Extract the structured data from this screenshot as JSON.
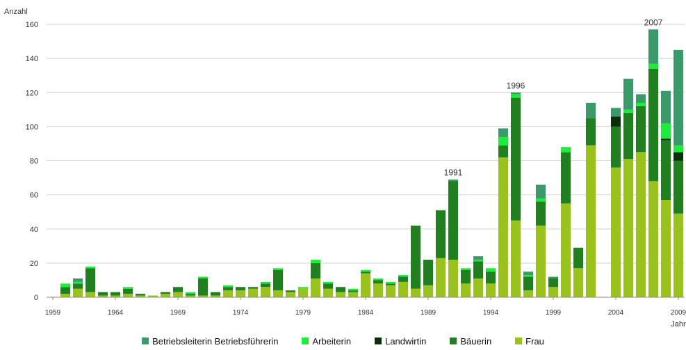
{
  "chart_data": {
    "type": "bar",
    "stacked": true,
    "ylabel": "Anzahl",
    "xlabel": "Jahr",
    "ylim": [
      0,
      160
    ],
    "yticks": [
      "0",
      "20",
      "40",
      "60",
      "80",
      "100",
      "120",
      "140",
      "160"
    ],
    "grid": "horizontal",
    "legend_position": "bottom",
    "x": [
      1959,
      1960,
      1961,
      1962,
      1963,
      1964,
      1965,
      1966,
      1967,
      1968,
      1969,
      1970,
      1971,
      1972,
      1973,
      1974,
      1975,
      1976,
      1977,
      1978,
      1979,
      1980,
      1981,
      1982,
      1983,
      1984,
      1985,
      1986,
      1987,
      1988,
      1989,
      1990,
      1991,
      1992,
      1993,
      1994,
      1995,
      1996,
      1997,
      1998,
      1999,
      2000,
      2001,
      2002,
      2003,
      2004,
      2005,
      2006,
      2007,
      2008,
      2009
    ],
    "xticks": [
      "1959",
      "1964",
      "1969",
      "1974",
      "1979",
      "1984",
      "1989",
      "1994",
      "1999",
      "2004",
      "2009"
    ],
    "annotations": [
      {
        "x": 1991,
        "y": 69,
        "text": "1991"
      },
      {
        "x": 1996,
        "y": 120,
        "text": "1996"
      },
      {
        "x": 2007,
        "y": 157,
        "text": "2007"
      }
    ],
    "series": [
      {
        "name": "Frau",
        "color": "#99c31c",
        "values": [
          0,
          2,
          5,
          3,
          1,
          1,
          2,
          1,
          1,
          2,
          3,
          1,
          1,
          1,
          4,
          4,
          5,
          6,
          4,
          3,
          5,
          11,
          5,
          3,
          3,
          14,
          8,
          7,
          9,
          5,
          7,
          23,
          22,
          8,
          11,
          8,
          82,
          45,
          4,
          42,
          6,
          55,
          17,
          89,
          0,
          76,
          81,
          85,
          68,
          57,
          49
        ]
      },
      {
        "name": "Bäuerin",
        "color": "#20801f",
        "values": [
          0,
          4,
          3,
          14,
          2,
          2,
          3,
          1,
          0,
          1,
          3,
          1,
          10,
          2,
          2,
          2,
          1,
          2,
          12,
          1,
          0,
          9,
          3,
          3,
          1,
          1,
          2,
          1,
          3,
          37,
          15,
          28,
          46,
          8,
          10,
          7,
          7,
          72,
          8,
          14,
          5,
          30,
          12,
          16,
          0,
          24,
          27,
          27,
          66,
          35,
          31
        ]
      },
      {
        "name": "Landwirtin",
        "color": "#0b2e0c",
        "values": [
          0,
          0,
          0,
          0,
          0,
          0,
          0,
          0,
          0,
          0,
          0,
          0,
          0,
          0,
          0,
          0,
          0,
          0,
          0,
          0,
          0,
          0,
          0,
          0,
          0,
          0,
          0,
          0,
          0,
          0,
          0,
          0,
          0,
          0,
          0,
          0,
          0,
          0,
          0,
          0,
          0,
          0,
          0,
          0,
          0,
          6,
          0,
          0,
          0,
          1,
          5
        ]
      },
      {
        "name": "Arbeiterin",
        "color": "#1ded3a",
        "values": [
          0,
          2,
          1,
          1,
          0,
          0,
          1,
          0,
          0,
          0,
          0,
          1,
          1,
          0,
          1,
          0,
          0,
          1,
          1,
          0,
          1,
          2,
          1,
          0,
          1,
          1,
          1,
          1,
          1,
          0,
          0,
          0,
          0,
          1,
          1,
          2,
          5,
          2,
          1,
          2,
          0,
          3,
          0,
          0,
          0,
          0,
          2,
          2,
          3,
          9,
          4
        ]
      },
      {
        "name": "Betriebsleiterin Betriebsführerin",
        "color": "#3a9a6a",
        "values": [
          0,
          0,
          2,
          0,
          0,
          0,
          0,
          0,
          0,
          0,
          0,
          0,
          0,
          0,
          0,
          0,
          0,
          0,
          0,
          0,
          0,
          0,
          0,
          0,
          0,
          0,
          0,
          0,
          0,
          0,
          0,
          0,
          1,
          0,
          2,
          0,
          5,
          1,
          2,
          8,
          1,
          0,
          0,
          9,
          0,
          5,
          18,
          5,
          20,
          19,
          56
        ]
      }
    ],
    "legend_order": [
      "Betriebsleiterin Betriebsführerin",
      "Arbeiterin",
      "Landwirtin",
      "Bäuerin",
      "Frau"
    ]
  }
}
